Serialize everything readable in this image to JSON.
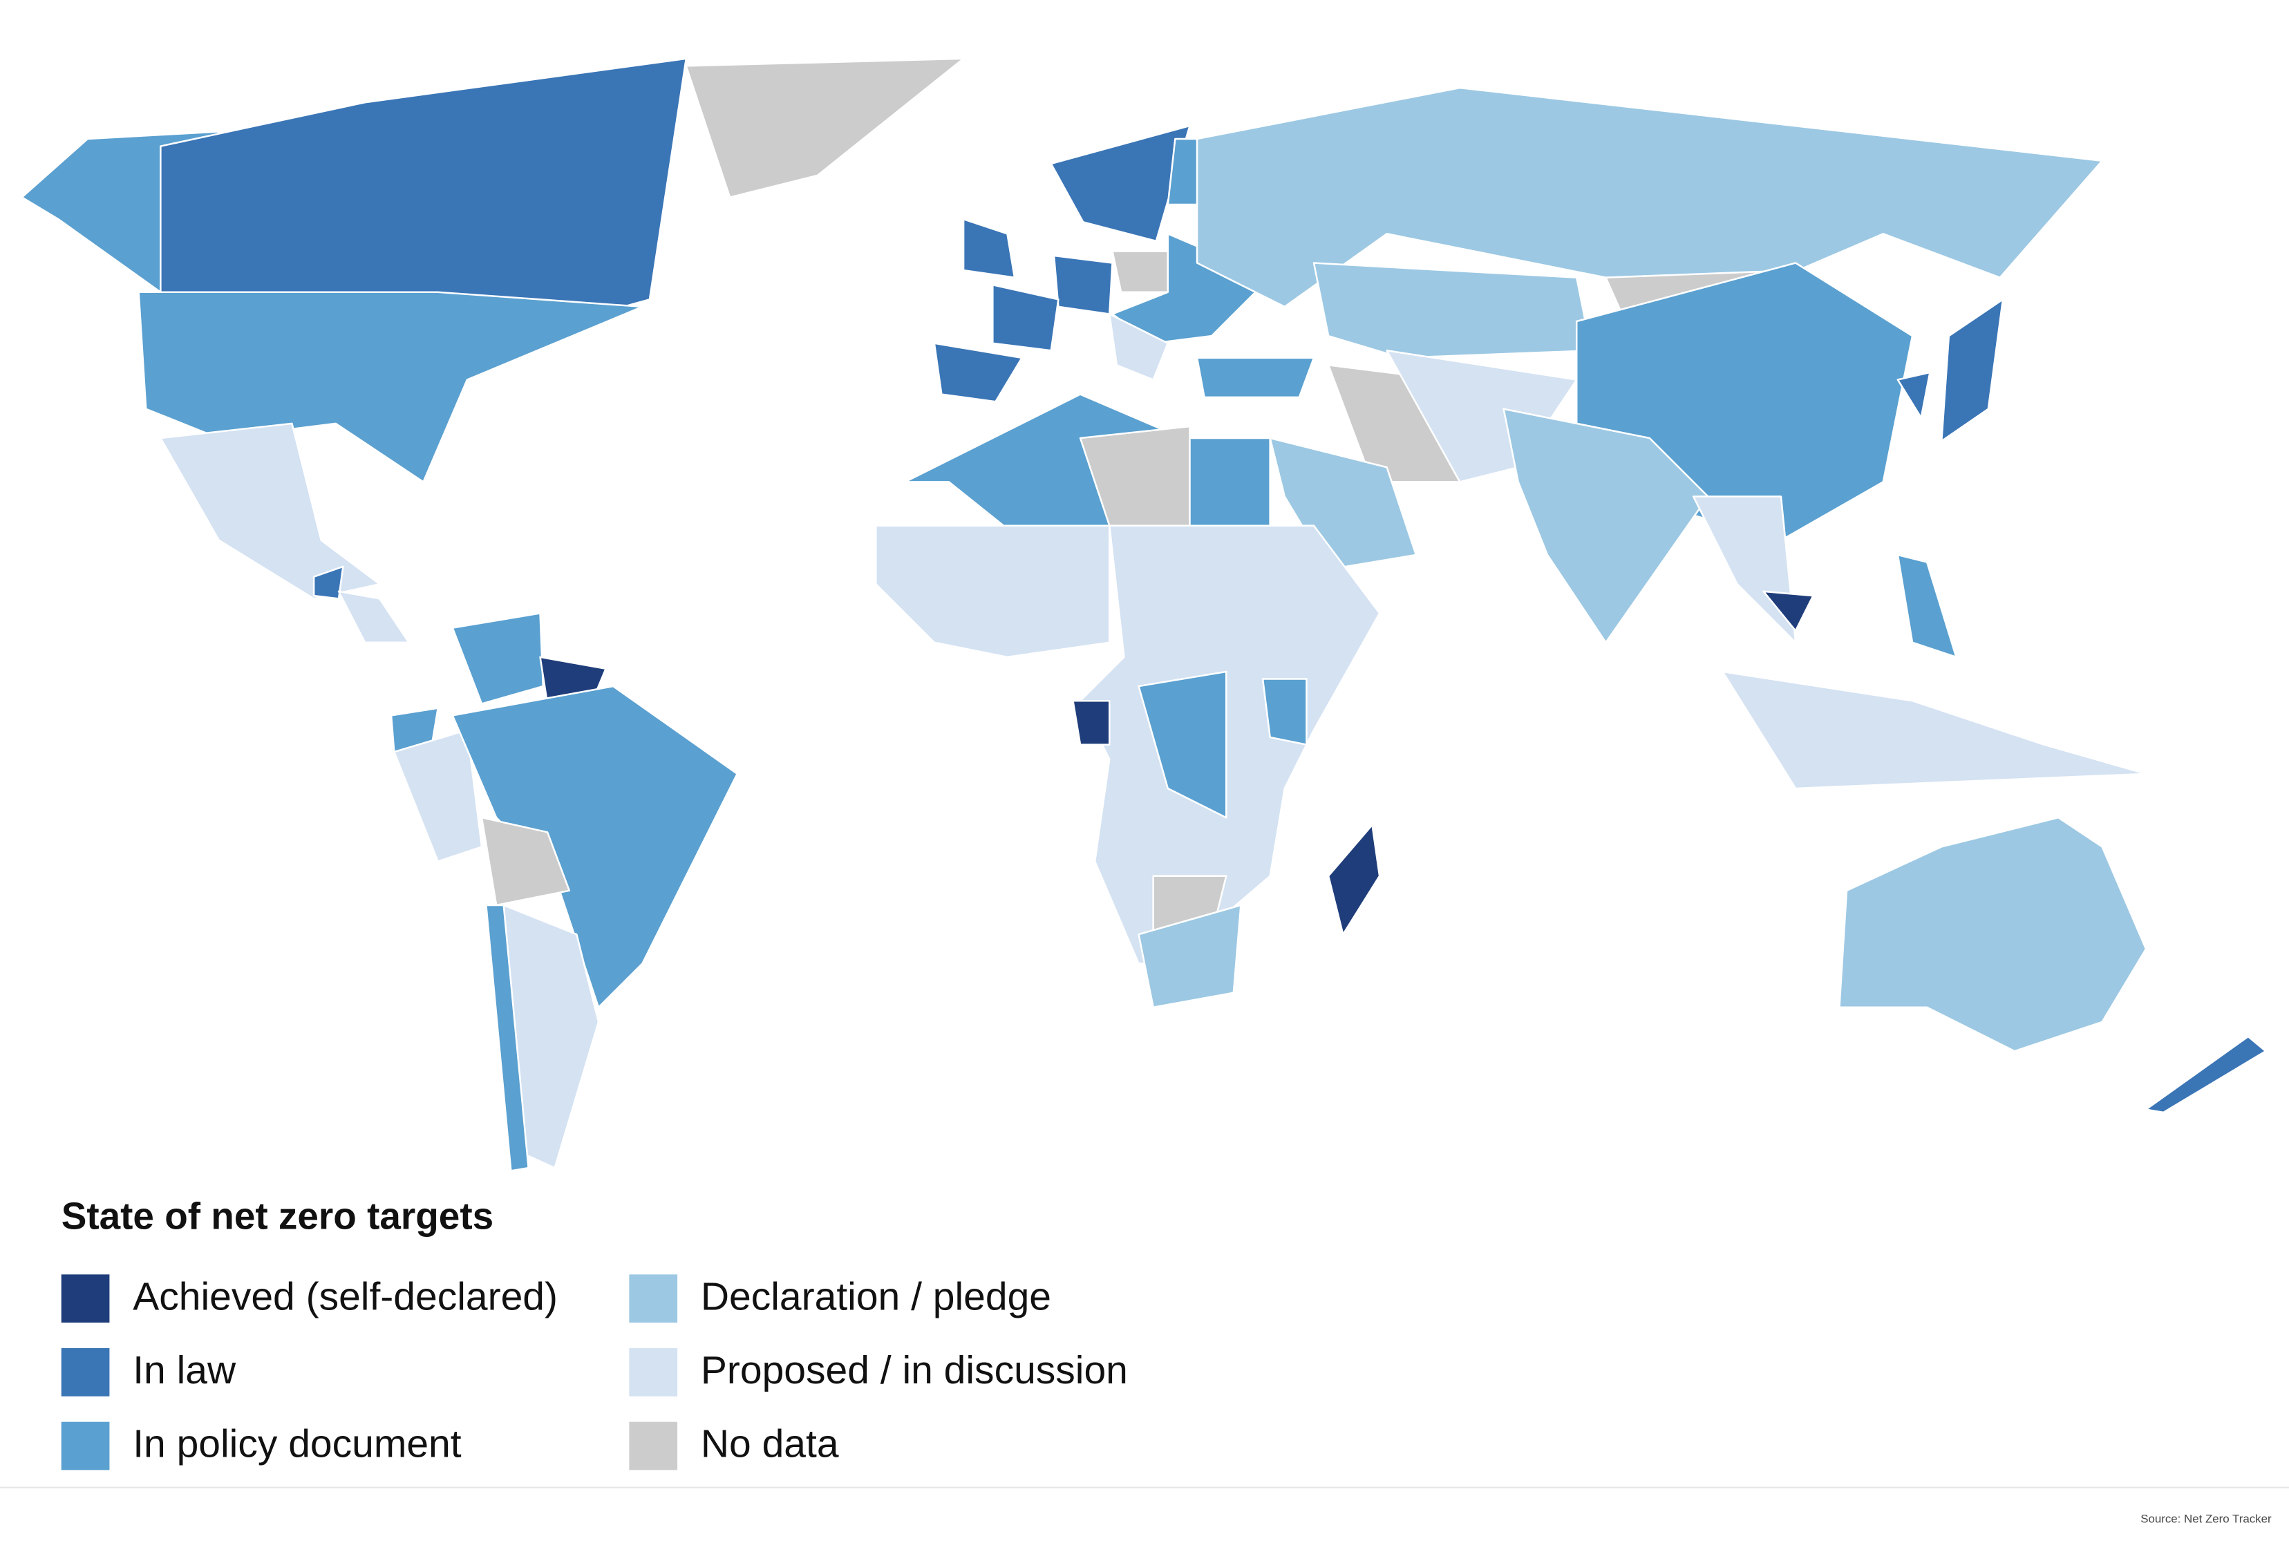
{
  "legend": {
    "title": "State of net zero targets",
    "items": [
      {
        "label": "Achieved (self-declared)",
        "color": "#1f3d7a"
      },
      {
        "label": "In law",
        "color": "#3a75b6"
      },
      {
        "label": "In policy document",
        "color": "#5aa0d0"
      },
      {
        "label": "Declaration / pledge",
        "color": "#9cc8e3"
      },
      {
        "label": "Proposed / in discussion",
        "color": "#d4e2f2"
      },
      {
        "label": "No data",
        "color": "#cccccc"
      }
    ]
  },
  "source": "Source: Net Zero Tracker"
}
